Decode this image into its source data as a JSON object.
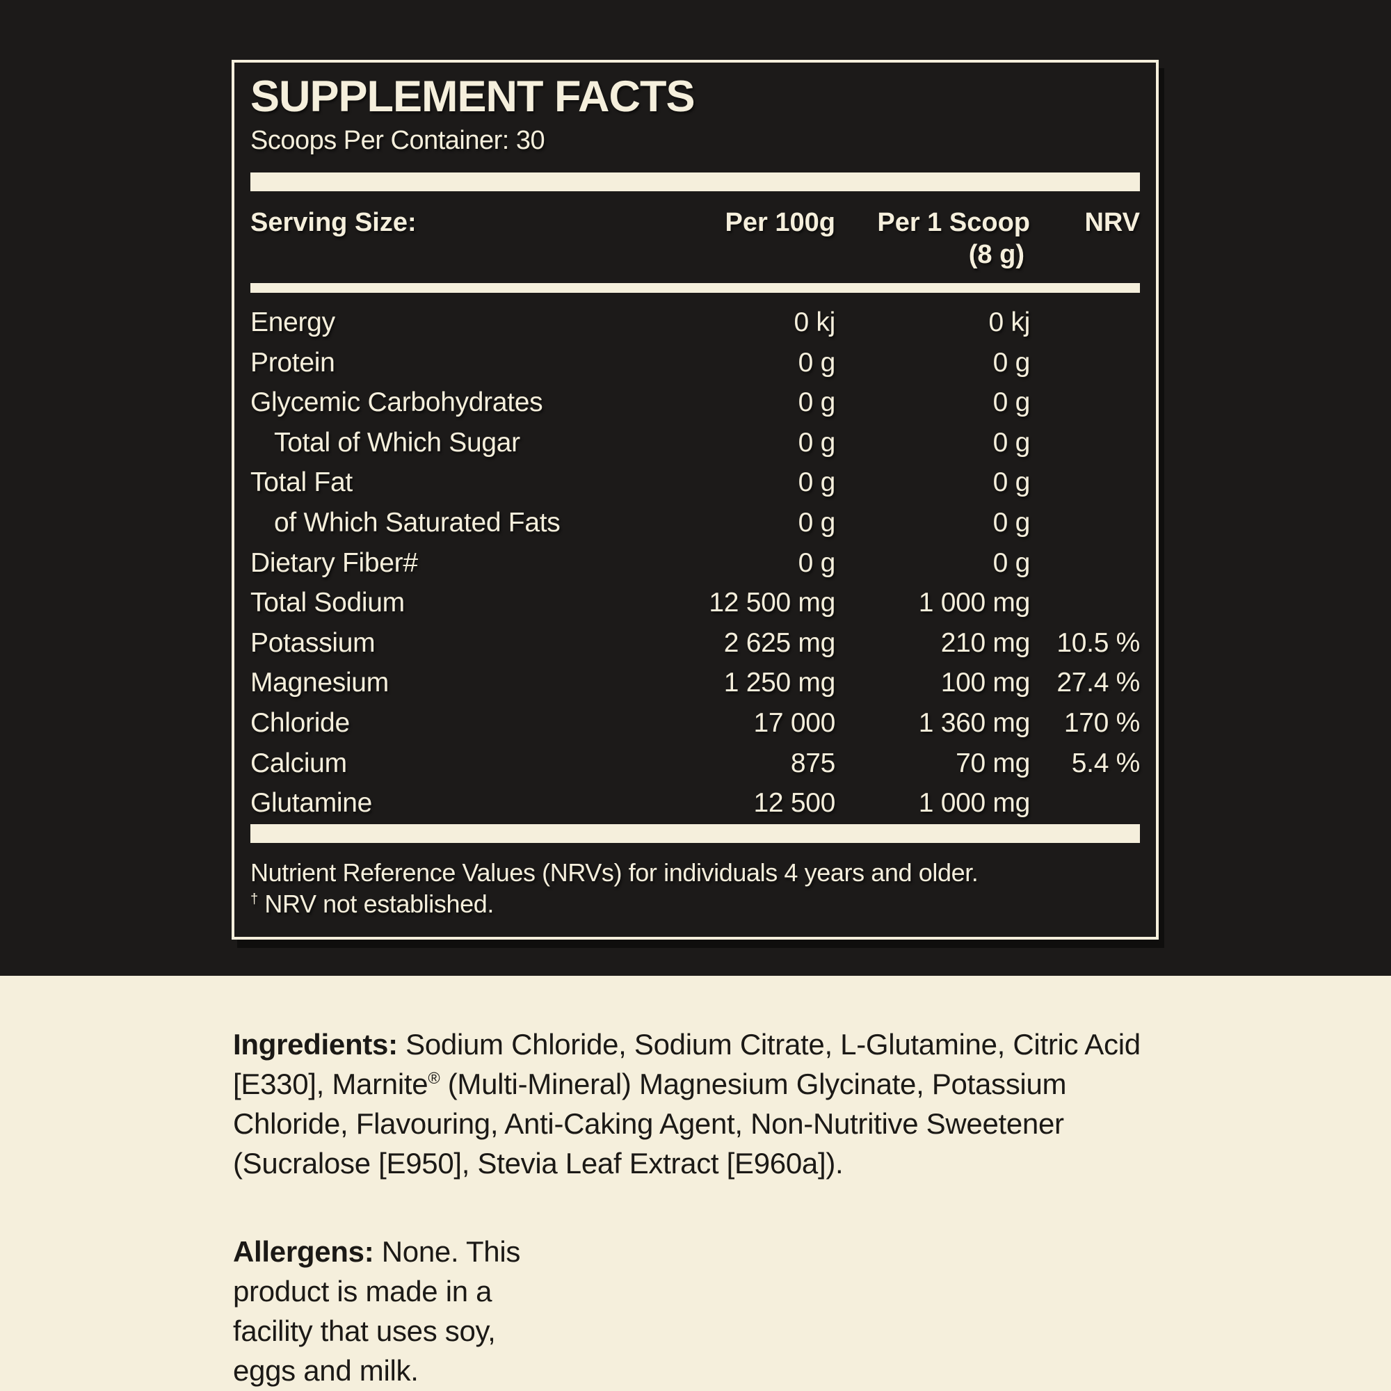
{
  "colors": {
    "dark_background": "#1c1a19",
    "cream": "#f5efdc",
    "ink": "#1b1916"
  },
  "panel": {
    "title": "SUPPLEMENT FACTS",
    "scoops_per_container": "Scoops Per Container: 30",
    "table": {
      "headers": {
        "serving_size": "Serving Size:",
        "per_100g": "Per 100g",
        "per_scoop_line1": "Per 1 Scoop",
        "per_scoop_line2": "(8 g)",
        "nrv": "NRV"
      },
      "rows": [
        {
          "name": "Energy",
          "indent": false,
          "per_100g": "0 kj",
          "per_scoop": "0 kj",
          "nrv": ""
        },
        {
          "name": "Protein",
          "indent": false,
          "per_100g": "0 g",
          "per_scoop": "0 g",
          "nrv": ""
        },
        {
          "name": "Glycemic Carbohydrates",
          "indent": false,
          "per_100g": "0 g",
          "per_scoop": "0 g",
          "nrv": ""
        },
        {
          "name": "Total of Which Sugar",
          "indent": true,
          "per_100g": "0 g",
          "per_scoop": "0 g",
          "nrv": ""
        },
        {
          "name": "Total Fat",
          "indent": false,
          "per_100g": "0 g",
          "per_scoop": "0 g",
          "nrv": ""
        },
        {
          "name": "of Which Saturated Fats",
          "indent": true,
          "per_100g": "0 g",
          "per_scoop": "0 g",
          "nrv": ""
        },
        {
          "name": "Dietary Fiber#",
          "indent": false,
          "per_100g": "0 g",
          "per_scoop": "0 g",
          "nrv": ""
        },
        {
          "name": "Total Sodium",
          "indent": false,
          "per_100g": "12 500 mg",
          "per_scoop": "1 000 mg",
          "nrv": ""
        },
        {
          "name": "Potassium",
          "indent": false,
          "per_100g": "2 625 mg",
          "per_scoop": "210 mg",
          "nrv": "10.5 %"
        },
        {
          "name": "Magnesium",
          "indent": false,
          "per_100g": "1 250 mg",
          "per_scoop": "100 mg",
          "nrv": "27.4 %"
        },
        {
          "name": "Chloride",
          "indent": false,
          "per_100g": "17 000",
          "per_scoop": "1 360 mg",
          "nrv": "170 %"
        },
        {
          "name": "Calcium",
          "indent": false,
          "per_100g": "875",
          "per_scoop": "70 mg",
          "nrv": "5.4 %"
        },
        {
          "name": "Glutamine",
          "indent": false,
          "per_100g": "12 500",
          "per_scoop": "1 000 mg",
          "nrv": ""
        }
      ]
    },
    "footnote_lines": [
      "Nutrient Reference Values (NRVs) for individuals 4 years and older.",
      "† NRV not established."
    ]
  },
  "info": {
    "ingredients": {
      "label": "Ingredients:",
      "lines": [
        "Sodium Chloride, Sodium Citrate, L-Glutamine, Citric Acid",
        "[E330], Marnite® (Multi-Mineral) Magnesium Glycinate, Potassium",
        "Chloride, Flavouring, Anti-Caking Agent, Non-Nutritive Sweetener",
        "(Sucralose [E950], Stevia Leaf Extract [E960a])."
      ]
    },
    "allergens": {
      "label": "Allergens:",
      "lines": [
        "None. This",
        "product is made in a",
        "facility that uses soy,",
        "eggs and milk."
      ]
    }
  }
}
